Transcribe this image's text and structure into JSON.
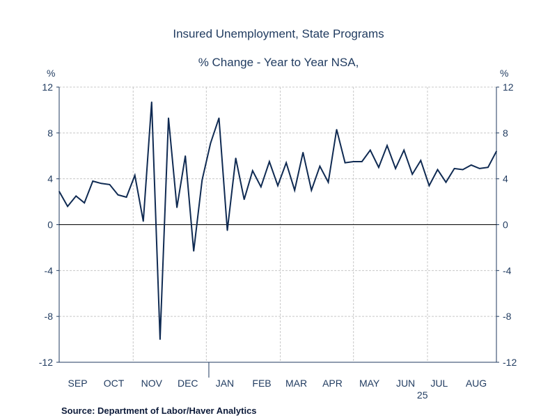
{
  "title": "Insured Unemployment, State Programs",
  "subtitle": "% Change - Year to Year    NSA,",
  "source": "Source:  Department of Labor/Haver Analytics",
  "colors": {
    "line": "#0f2a52",
    "grid": "#c8c8c8",
    "axis": "#1f3a5f",
    "text": "#1f3a5f"
  },
  "chart_data": {
    "type": "line",
    "title": "Insured Unemployment, State Programs",
    "subtitle": "% Change - Year to Year    NSA,",
    "ylabel_left": "%",
    "ylabel_right": "%",
    "ylim": [
      -12,
      12
    ],
    "yticks": [
      12,
      8,
      4,
      0,
      -4,
      -8,
      -12
    ],
    "xlim": [
      0,
      52
    ],
    "month_labels": [
      {
        "label": "SEP",
        "x": 2.2
      },
      {
        "label": "OCT",
        "x": 6.5
      },
      {
        "label": "NOV",
        "x": 11
      },
      {
        "label": "DEC",
        "x": 15.3
      },
      {
        "label": "JAN",
        "x": 19.7
      },
      {
        "label": "FEB",
        "x": 24.1
      },
      {
        "label": "MAR",
        "x": 28.2
      },
      {
        "label": "APR",
        "x": 32.5
      },
      {
        "label": "MAY",
        "x": 36.9
      },
      {
        "label": "JUN",
        "x": 41.2
      },
      {
        "label": "JUL",
        "x": 45.2
      },
      {
        "label": "AUG",
        "x": 49.6
      }
    ],
    "year_label": {
      "label": "25",
      "x": 43.2
    },
    "month_boundaries": [
      8.8,
      17.5,
      26.3,
      35,
      43.8
    ],
    "year_tick_x": 17.8,
    "series": [
      {
        "name": "Insured Unemployment, State Programs % Change Y/Y",
        "values": [
          2.9,
          1.6,
          2.5,
          1.9,
          3.8,
          3.6,
          3.5,
          2.6,
          2.4,
          4.3,
          0.3,
          10.7,
          -10,
          9.3,
          1.5,
          6.0,
          -2.3,
          3.9,
          7.1,
          9.3,
          -0.5,
          5.8,
          2.2,
          4.7,
          3.3,
          5.5,
          3.4,
          5.4,
          3.0,
          6.3,
          3.0,
          5.1,
          3.7,
          8.3,
          5.4,
          5.5,
          5.5,
          6.5,
          5.0,
          6.9,
          4.9,
          6.5,
          4.4,
          5.6,
          3.4,
          4.8,
          3.7,
          4.9,
          4.8,
          5.2,
          4.9,
          5.0,
          6.4
        ]
      }
    ]
  }
}
